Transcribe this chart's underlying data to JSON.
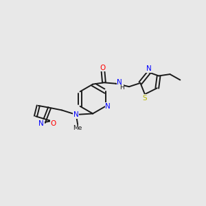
{
  "background_color": "#e8e8e8",
  "bond_color": "#1a1a1a",
  "atom_colors": {
    "N": "#0000ff",
    "O": "#ff0000",
    "S": "#b8b800",
    "C": "#1a1a1a",
    "H": "#1a1a1a"
  },
  "figsize": [
    3.0,
    3.0
  ],
  "dpi": 100
}
